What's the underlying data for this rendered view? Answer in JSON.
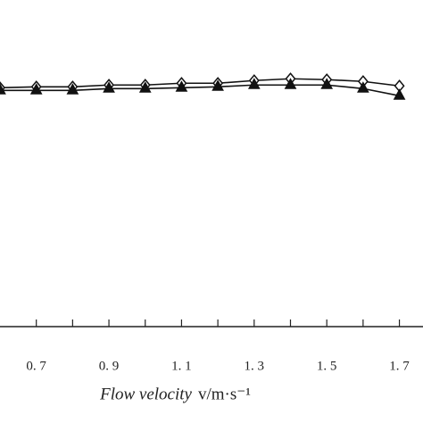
{
  "chart_data": {
    "type": "line",
    "xlabel": "Flow velocity",
    "xlabel_unit": "v/m·s⁻¹",
    "x": [
      0.6,
      0.7,
      0.8,
      0.9,
      1.0,
      1.1,
      1.2,
      1.3,
      1.4,
      1.5,
      1.6,
      1.7
    ],
    "series": [
      {
        "color": "#111111",
        "marker": "diamond",
        "values": [
          267,
          268,
          268,
          270,
          270,
          272,
          272,
          275,
          277,
          276,
          274,
          269
        ]
      },
      {
        "color": "#111111",
        "marker": "triangle",
        "values": [
          264,
          264,
          264,
          266,
          266,
          267,
          268,
          270,
          270,
          270,
          266,
          258
        ]
      }
    ],
    "xlim": [
      0.6,
      1.765
    ],
    "ylim": [
      0,
      365
    ],
    "xticks": [
      {
        "value": 0.7,
        "label": "0. 7"
      },
      {
        "value": 0.9,
        "label": "0. 9"
      },
      {
        "value": 1.1,
        "label": "1. 1"
      },
      {
        "value": 1.3,
        "label": "1. 3"
      },
      {
        "value": 1.5,
        "label": "1. 5"
      },
      {
        "value": 1.7,
        "label": "1. 7"
      }
    ],
    "xminor_ticks": [
      0.8,
      1.0,
      1.2,
      1.4,
      1.6
    ]
  }
}
